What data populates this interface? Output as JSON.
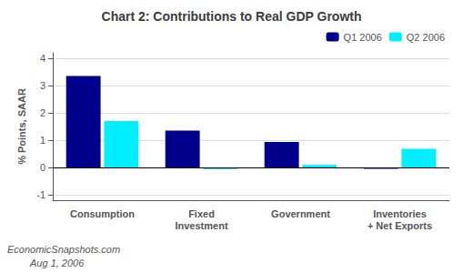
{
  "chart_data": {
    "type": "bar",
    "title": "Chart 2: Contributions to Real GDP Growth",
    "ylabel": "% Points, SAAR",
    "categories": [
      "Consumption",
      "Fixed\nInvestment",
      "Government",
      "Inventories\n+ Net Exports"
    ],
    "series": [
      {
        "name": "Q1 2006",
        "color": "#00008B",
        "values": [
          3.35,
          1.35,
          0.93,
          -0.05
        ]
      },
      {
        "name": "Q2 2006",
        "color": "#00EEFF",
        "values": [
          1.7,
          -0.07,
          0.09,
          0.68
        ]
      }
    ],
    "ylim": [
      -1.2,
      4.2
    ],
    "yticks": [
      -1,
      0,
      1,
      2,
      3,
      4
    ],
    "grid": true,
    "legend": "upper right",
    "annotations": [
      "EconomicSnapshots.com",
      "Aug 1, 2006"
    ]
  }
}
